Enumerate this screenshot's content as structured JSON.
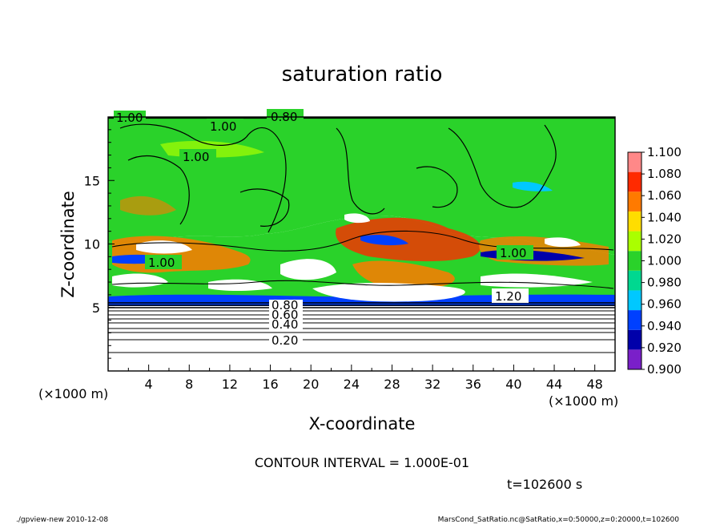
{
  "chart_data": {
    "type": "heatmap",
    "title": "saturation ratio",
    "xlabel": "X-coordinate",
    "ylabel": "Z-coordinate",
    "x_unit": "(×1000 m)",
    "y_unit": "(×1000 m)",
    "xlim": [
      0,
      50
    ],
    "ylim": [
      0,
      20
    ],
    "x_ticks": [
      "4",
      "8",
      "12",
      "16",
      "20",
      "24",
      "28",
      "32",
      "36",
      "40",
      "44",
      "48"
    ],
    "y_ticks": [
      "5",
      "10",
      "15"
    ],
    "colorbar": {
      "levels": [
        "0.900",
        "0.920",
        "0.940",
        "0.960",
        "0.980",
        "1.000",
        "1.020",
        "1.040",
        "1.060",
        "1.080",
        "1.100"
      ],
      "colors": [
        "#7a1fc9",
        "#0000aa",
        "#0040ff",
        "#00c8ff",
        "#00d890",
        "#2ad22a",
        "#aaff00",
        "#ffdd00",
        "#ff7a00",
        "#ff2a00",
        "#ff8888"
      ]
    },
    "contour_labels": [
      "1.00",
      "0.80",
      "1.00",
      "1.00",
      "1.00",
      "1.00",
      "1.20",
      "0.80",
      "0.60",
      "0.40",
      "0.20"
    ],
    "contour_interval_text": "CONTOUR INTERVAL = 1.000E-01",
    "time_text": "t=102600 s"
  },
  "footer": {
    "left": "./gpview-new  2010-12-08",
    "right": "MarsCond_SatRatio.nc@SatRatio,x=0:50000,z=0:20000,t=102600"
  }
}
